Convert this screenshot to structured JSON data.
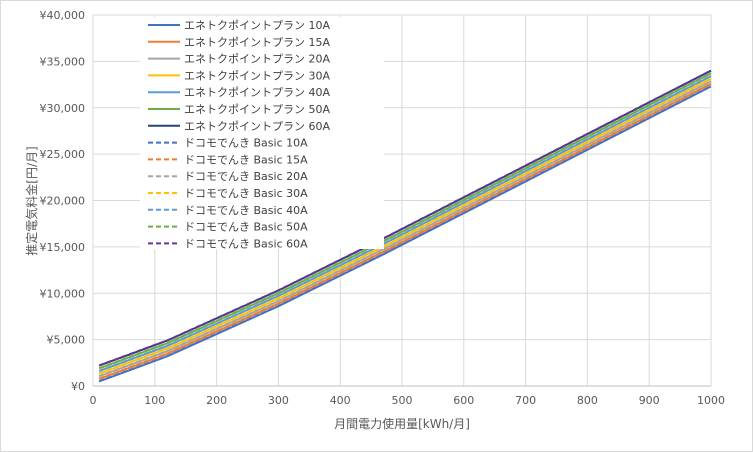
{
  "chart_data": {
    "type": "line",
    "title": "",
    "xlabel": "月間電力使用量[kWh/月]",
    "ylabel": "推定電気料金[円/月]",
    "xlim": [
      0,
      1000
    ],
    "ylim": [
      0,
      40000
    ],
    "x_ticks": [
      "0",
      "100",
      "200",
      "300",
      "400",
      "500",
      "600",
      "700",
      "800",
      "900",
      "1000"
    ],
    "y_ticks": [
      "¥0",
      "¥5,000",
      "¥10,000",
      "¥15,000",
      "¥20,000",
      "¥25,000",
      "¥30,000",
      "¥35,000",
      "¥40,000"
    ],
    "grid": true,
    "legend_position": "top-left-inside",
    "x": [
      10,
      120,
      300,
      470,
      1000
    ],
    "series": [
      {
        "name": "エネトクポイントプラン 10A",
        "color": "#4472C4",
        "dash": false,
        "values": [
          500,
          3200,
          8600,
          14200,
          32300
        ]
      },
      {
        "name": "エネトクポイントプラン 15A",
        "color": "#ED7D31",
        "dash": false,
        "values": [
          770,
          3470,
          8870,
          14470,
          32570
        ]
      },
      {
        "name": "エネトクポイントプラン 20A",
        "color": "#A5A5A5",
        "dash": false,
        "values": [
          1050,
          3750,
          9150,
          14750,
          32850
        ]
      },
      {
        "name": "エネトクポイントプラン 30A",
        "color": "#FFC000",
        "dash": false,
        "values": [
          1330,
          4030,
          9430,
          15030,
          33130
        ]
      },
      {
        "name": "エネトクポイントプラン 40A",
        "color": "#5B9BD5",
        "dash": false,
        "values": [
          1610,
          4310,
          9710,
          15310,
          33410
        ]
      },
      {
        "name": "エネトクポイントプラン 50A",
        "color": "#70AD47",
        "dash": false,
        "values": [
          1900,
          4600,
          10000,
          15600,
          33700
        ]
      },
      {
        "name": "エネトクポイントプラン 60A",
        "color": "#264478",
        "dash": false,
        "values": [
          2200,
          4900,
          10300,
          15900,
          34000
        ]
      },
      {
        "name": "ドコモでんき Basic 10A",
        "color": "#4472C4",
        "dash": true,
        "values": [
          520,
          3220,
          8620,
          14220,
          32320
        ]
      },
      {
        "name": "ドコモでんき Basic 15A",
        "color": "#ED7D31",
        "dash": true,
        "values": [
          790,
          3490,
          8890,
          14490,
          32590
        ]
      },
      {
        "name": "ドコモでんき Basic 20A",
        "color": "#A5A5A5",
        "dash": true,
        "values": [
          1070,
          3770,
          9170,
          14770,
          32870
        ]
      },
      {
        "name": "ドコモでんき Basic 30A",
        "color": "#FFC000",
        "dash": true,
        "values": [
          1350,
          4050,
          9450,
          15050,
          33150
        ]
      },
      {
        "name": "ドコモでんき Basic 40A",
        "color": "#5B9BD5",
        "dash": true,
        "values": [
          1630,
          4330,
          9730,
          15330,
          33430
        ]
      },
      {
        "name": "ドコモでんき Basic 50A",
        "color": "#70AD47",
        "dash": true,
        "values": [
          1920,
          4620,
          10020,
          15620,
          33720
        ]
      },
      {
        "name": "ドコモでんき Basic 60A",
        "color": "#7030A0",
        "dash": true,
        "values": [
          2220,
          4920,
          10320,
          15920,
          34020
        ]
      }
    ]
  }
}
